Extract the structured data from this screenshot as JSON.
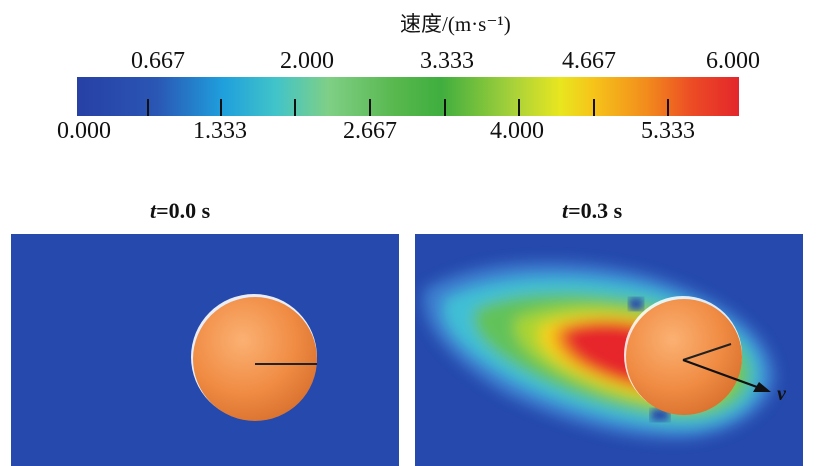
{
  "colorbar": {
    "title": "速度/(m·s⁻¹)",
    "ticks_top": [
      "0.667",
      "2.000",
      "3.333",
      "4.667",
      "6.000"
    ],
    "ticks_bottom": [
      "0.000",
      "1.333",
      "2.667",
      "4.000",
      "5.333"
    ],
    "range": [
      0,
      6
    ],
    "colors": [
      "#2740a6",
      "#1f9fdc",
      "#58b84e",
      "#e8e61f",
      "#f28c1c",
      "#e3262b"
    ]
  },
  "panels": [
    {
      "title_var": "t",
      "title_rest": "=0.0 s"
    },
    {
      "title_var": "t",
      "title_rest": "=0.3 s",
      "vector_label": "v"
    }
  ]
}
